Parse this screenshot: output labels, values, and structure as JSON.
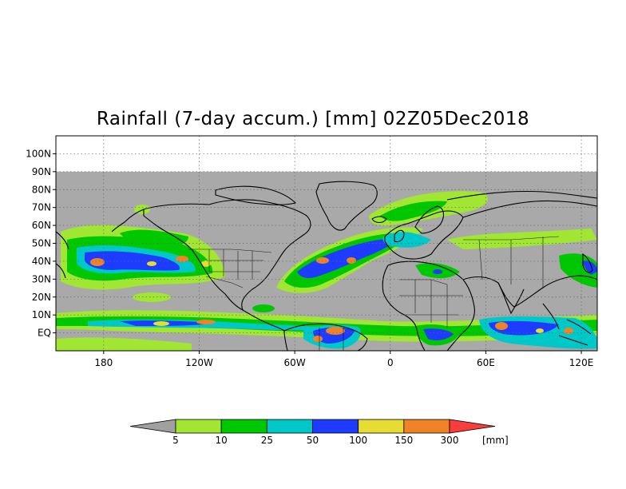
{
  "title": "Rainfall (7-day accum.) [mm] 02Z05Dec2018",
  "map": {
    "lon_range": [
      -210,
      130
    ],
    "lat_range": [
      -10,
      110
    ],
    "data_lat_max": 90,
    "lat_labels": [
      {
        "value": 100,
        "label": "100N"
      },
      {
        "value": 90,
        "label": "90N"
      },
      {
        "value": 80,
        "label": "80N"
      },
      {
        "value": 70,
        "label": "70N"
      },
      {
        "value": 60,
        "label": "60N"
      },
      {
        "value": 50,
        "label": "50N"
      },
      {
        "value": 40,
        "label": "40N"
      },
      {
        "value": 30,
        "label": "30N"
      },
      {
        "value": 20,
        "label": "20N"
      },
      {
        "value": 10,
        "label": "10N"
      },
      {
        "value": 0,
        "label": "EQ"
      }
    ],
    "lon_labels": [
      {
        "value": -180,
        "label": "180"
      },
      {
        "value": -120,
        "label": "120W"
      },
      {
        "value": -60,
        "label": "60W"
      },
      {
        "value": 0,
        "label": "0"
      },
      {
        "value": 60,
        "label": "60E"
      },
      {
        "value": 120,
        "label": "120E"
      }
    ],
    "no_data_color": "#a9a9a9"
  },
  "legend": {
    "unit": "[mm]",
    "thresholds": [
      "5",
      "10",
      "25",
      "50",
      "100",
      "150",
      "300"
    ],
    "colors": [
      "#a0a0a0",
      "#a0e632",
      "#00c800",
      "#00c8c8",
      "#1e3cff",
      "#e6dc32",
      "#f08228",
      "#fa3c3c"
    ]
  }
}
